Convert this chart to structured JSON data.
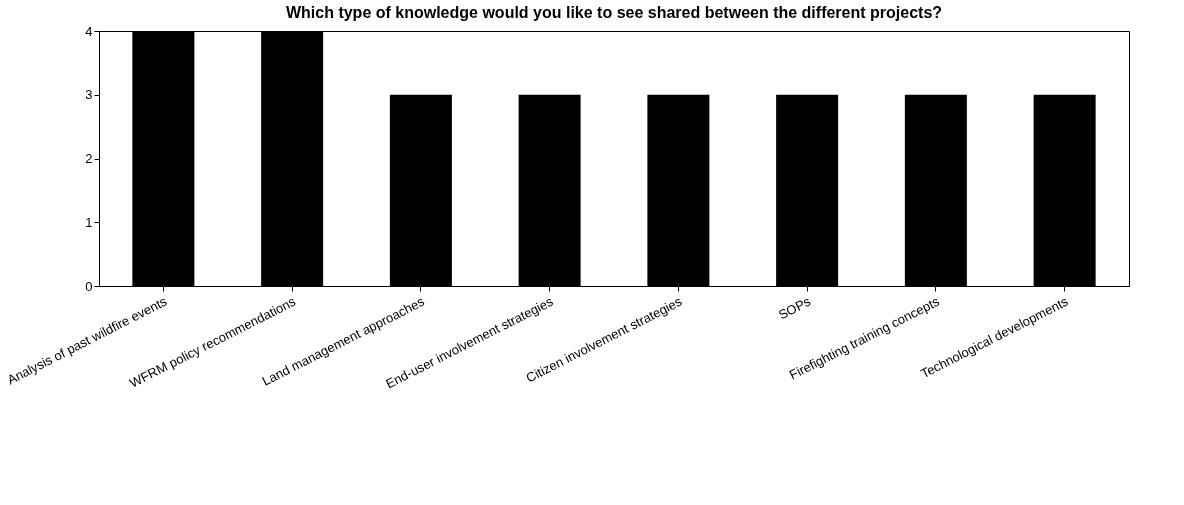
{
  "chart_data": {
    "type": "bar",
    "title": "Which type of knowledge would you like to see shared between the different projects?",
    "categories": [
      "Analysis of past wildfire events",
      "WFRM policy recommendations",
      "Land management approaches",
      "End-user involvement strategies",
      "Citizen involvement strategies",
      "SOPs",
      "Firefighting training concepts",
      "Technological developments"
    ],
    "values": [
      4,
      4,
      3,
      3,
      3,
      3,
      3,
      3
    ],
    "color": "#000000",
    "ylim": [
      0,
      4
    ],
    "yticks": [
      0,
      1,
      2,
      3,
      4
    ],
    "grid": false
  }
}
